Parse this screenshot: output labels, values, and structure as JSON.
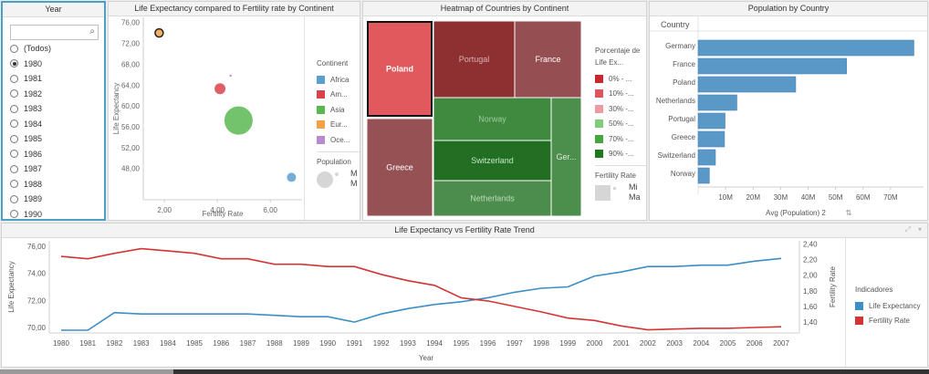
{
  "year_filter": {
    "title": "Year",
    "search_placeholder": "",
    "items": [
      "(Todos)",
      "1980",
      "1981",
      "1982",
      "1983",
      "1984",
      "1985",
      "1986",
      "1987",
      "1988",
      "1989",
      "1990"
    ],
    "selected": "1980"
  },
  "scatter": {
    "title": "Life Expectancy compared to Fertility rate by Continent",
    "legend_title": "Continent",
    "legend": [
      {
        "label": "Africa",
        "color": "#5b9fd1"
      },
      {
        "label": "Am...",
        "color": "#d9434b"
      },
      {
        "label": "Asia",
        "color": "#59b852"
      },
      {
        "label": "Eur...",
        "color": "#f4a046"
      },
      {
        "label": "Oce...",
        "color": "#b68ccf"
      }
    ],
    "size_legend_title": "Population",
    "size_legend_labels": [
      "M",
      "M"
    ]
  },
  "heatmap": {
    "title": "Heatmap of Countries by Continent",
    "legend_title": "Porcentaje de Life Ex...",
    "legend": [
      {
        "label": "0% - ...",
        "color": "#c9272c"
      },
      {
        "label": "10% -...",
        "color": "#e0555b"
      },
      {
        "label": "30% -...",
        "color": "#ec9ca0"
      },
      {
        "label": "50% -...",
        "color": "#7fcc7a"
      },
      {
        "label": "70% -...",
        "color": "#44a63e"
      },
      {
        "label": "90% -...",
        "color": "#1f7a1e"
      }
    ],
    "size_legend_title": "Fertility Rate",
    "size_legend_labels": [
      "Mi",
      "Ma"
    ],
    "cells": [
      "Poland",
      "Portugal",
      "France",
      "Norway",
      "Switzerland",
      "Ger...",
      "Netherlands",
      "Greece"
    ]
  },
  "population": {
    "title": "Population by Country",
    "column_header": "Country",
    "axis_label": "Avg (Population) 2",
    "sort_glyph": "⇅"
  },
  "trend": {
    "title": "Life Expectancy vs Fertility Rate Trend",
    "legend_title": "Indicadores",
    "legend": [
      {
        "label": "Life Expectancy",
        "color": "#3b8ec6"
      },
      {
        "label": "Fertility Rate",
        "color": "#d43435"
      }
    ]
  },
  "chart_data": [
    {
      "type": "scatter",
      "title": "Life Expectancy compared to Fertility rate by Continent",
      "xlabel": "Fertility Rate",
      "ylabel": "Life Expectancy",
      "xlim": [
        1.2,
        7.2
      ],
      "ylim": [
        42,
        77
      ],
      "xticks": [
        "2,00",
        "4,00",
        "6,00"
      ],
      "xtick_values": [
        2,
        4,
        6
      ],
      "yticks": [
        "48,00",
        "52,00",
        "56,00",
        "60,00",
        "64,00",
        "68,00",
        "72,00",
        "76,00"
      ],
      "ytick_values": [
        48,
        52,
        56,
        60,
        64,
        68,
        72,
        76
      ],
      "points": [
        {
          "continent": "Europe",
          "x": 1.8,
          "y": 74.0,
          "size": 1
        },
        {
          "continent": "Americas",
          "x": 4.1,
          "y": 63.3,
          "size": 2
        },
        {
          "continent": "Asia",
          "x": 4.8,
          "y": 57.2,
          "size": 5
        },
        {
          "continent": "Africa",
          "x": 6.8,
          "y": 46.3,
          "size": 1
        }
      ]
    },
    {
      "type": "bar",
      "title": "Population by Country",
      "categories": [
        "Germany",
        "France",
        "Poland",
        "Netherlands",
        "Portugal",
        "Greece",
        "Switzerland",
        "Norway"
      ],
      "values": [
        78500000,
        54000000,
        35500000,
        14100000,
        9800000,
        9600000,
        6300000,
        4100000
      ],
      "xlim": [
        0,
        82000000
      ],
      "xticks": [
        "10M",
        "20M",
        "30M",
        "40M",
        "50M",
        "60M",
        "70M"
      ],
      "xtick_values": [
        10000000,
        20000000,
        30000000,
        40000000,
        50000000,
        60000000,
        70000000
      ],
      "xlabel": "Avg (Population) 2"
    },
    {
      "type": "line",
      "title": "Life Expectancy vs Fertility Rate Trend",
      "x": [
        1980,
        1981,
        1982,
        1983,
        1984,
        1985,
        1986,
        1987,
        1988,
        1989,
        1990,
        1991,
        1992,
        1993,
        1994,
        1995,
        1996,
        1997,
        1998,
        1999,
        2000,
        2001,
        2002,
        2003,
        2004,
        2005,
        2006,
        2007
      ],
      "xlabel": "Year",
      "ylabel": "Life Expectancy",
      "y2label": "Fertility Rate",
      "ylim": [
        69.6,
        76.4
      ],
      "y2lim": [
        1.26,
        2.44
      ],
      "yticks": [
        "70,00",
        "72,00",
        "74,00",
        "76,00"
      ],
      "ytick_values": [
        70,
        72,
        74,
        76
      ],
      "y2ticks": [
        "1,40",
        "1,60",
        "1,80",
        "2,00",
        "2,20",
        "2,40"
      ],
      "y2tick_values": [
        1.4,
        1.6,
        1.8,
        2.0,
        2.2,
        2.4
      ],
      "series": [
        {
          "name": "Life Expectancy",
          "axis": "left",
          "values": [
            69.8,
            69.8,
            71.1,
            71.0,
            71.0,
            71.0,
            71.0,
            71.0,
            70.9,
            70.8,
            70.8,
            70.4,
            71.0,
            71.4,
            71.7,
            71.9,
            72.2,
            72.6,
            72.9,
            73.0,
            73.8,
            74.1,
            74.5,
            74.5,
            74.6,
            74.6,
            74.9,
            75.1
          ]
        },
        {
          "name": "Fertility Rate",
          "axis": "right",
          "values": [
            2.24,
            2.21,
            2.28,
            2.34,
            2.31,
            2.28,
            2.21,
            2.21,
            2.14,
            2.14,
            2.11,
            2.11,
            2.01,
            1.93,
            1.87,
            1.71,
            1.67,
            1.6,
            1.53,
            1.45,
            1.42,
            1.35,
            1.3,
            1.31,
            1.32,
            1.32,
            1.33,
            1.34
          ]
        }
      ]
    }
  ]
}
